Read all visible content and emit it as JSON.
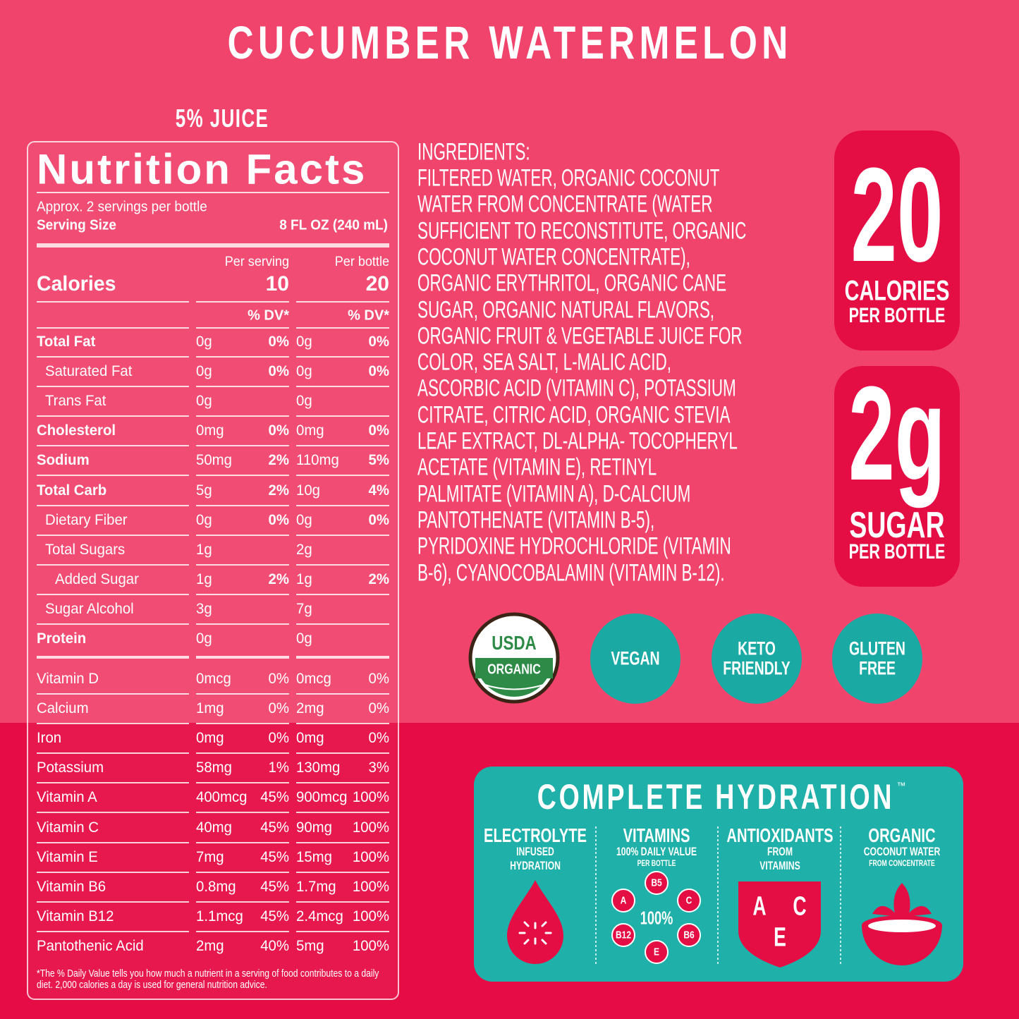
{
  "title": "CUCUMBER WATERMELON",
  "juice": "5% JUICE",
  "nutrition": {
    "heading": "Nutrition Facts",
    "servings": "Approx. 2 servings per bottle",
    "serving_size_label": "Serving Size",
    "serving_size": "8 FL OZ (240 mL)",
    "per_serving": "Per serving",
    "per_bottle": "Per bottle",
    "calories_label": "Calories",
    "calories_serving": "10",
    "calories_bottle": "20",
    "dv_headers": [
      "% DV*",
      "% DV*"
    ],
    "rows": [
      {
        "name": "Total Fat",
        "serving": "0g",
        "serving_dv": "0%",
        "bottle": "0g",
        "bottle_dv": "0%"
      },
      {
        "name": "Saturated Fat",
        "serving": "0g",
        "serving_dv": "0%",
        "bottle": "0g",
        "bottle_dv": "0%"
      },
      {
        "name": "Trans Fat",
        "serving": "0g",
        "bottle": "0g"
      },
      {
        "name": "Cholesterol",
        "serving": "0mg",
        "serving_dv": "0%",
        "bottle": "0mg",
        "bottle_dv": "0%"
      },
      {
        "name": "Sodium",
        "serving": "50mg",
        "serving_dv": "2%",
        "bottle": "110mg",
        "bottle_dv": "5%"
      },
      {
        "name": "Total Carb",
        "serving": "5g",
        "serving_dv": "2%",
        "bottle": "10g",
        "bottle_dv": "4%"
      },
      {
        "name": "Dietary Fiber",
        "serving": "0g",
        "serving_dv": "0%",
        "bottle": "0g",
        "bottle_dv": "0%"
      },
      {
        "name": "Total Sugars",
        "serving": "1g",
        "bottle": "2g"
      },
      {
        "name": "Added Sugar",
        "serving": "1g",
        "serving_dv": "2%",
        "bottle": "1g",
        "bottle_dv": "2%"
      },
      {
        "name": "Sugar Alcohol",
        "serving": "3g",
        "bottle": "7g"
      },
      {
        "name": "Protein",
        "serving": "0g",
        "bottle": "0g"
      }
    ],
    "vitamins": [
      {
        "name": "Vitamin D",
        "serving": "0mcg",
        "serving_dv": "0%",
        "bottle": "0mcg",
        "bottle_dv": "0%"
      },
      {
        "name": "Calcium",
        "serving": "1mg",
        "serving_dv": "0%",
        "bottle": "2mg",
        "bottle_dv": "0%"
      },
      {
        "name": "Iron",
        "serving": "0mg",
        "serving_dv": "0%",
        "bottle": "0mg",
        "bottle_dv": "0%"
      },
      {
        "name": "Potassium",
        "serving": "58mg",
        "serving_dv": "1%",
        "bottle": "130mg",
        "bottle_dv": "3%"
      },
      {
        "name": "Vitamin A",
        "serving": "400mcg",
        "serving_dv": "45%",
        "bottle": "900mcg",
        "bottle_dv": "100%"
      },
      {
        "name": "Vitamin C",
        "serving": "40mg",
        "serving_dv": "45%",
        "bottle": "90mg",
        "bottle_dv": "100%"
      },
      {
        "name": "Vitamin E",
        "serving": "7mg",
        "serving_dv": "45%",
        "bottle": "15mg",
        "bottle_dv": "100%"
      },
      {
        "name": "Vitamin B6",
        "serving": "0.8mg",
        "serving_dv": "45%",
        "bottle": "1.7mg",
        "bottle_dv": "100%"
      },
      {
        "name": "Vitamin B12",
        "serving": "1.1mcg",
        "serving_dv": "45%",
        "bottle": "2.4mcg",
        "bottle_dv": "100%"
      },
      {
        "name": "Pantothenic Acid",
        "serving": "2mg",
        "serving_dv": "40%",
        "bottle": "5mg",
        "bottle_dv": "100%"
      }
    ],
    "footnote": "*The % Daily Value tells you how much a nutrient in a serving of food contributes to a daily diet. 2,000 calories a day is used for general nutrition advice."
  },
  "ingredients": {
    "heading": "INGREDIENTS:",
    "lines": [
      "FILTERED WATER, ORGANIC COCONUT",
      "WATER FROM CONCENTRATE (WATER",
      "SUFFICIENT TO RECONSTITUTE, ORGANIC",
      "COCONUT WATER CONCENTRATE),",
      "ORGANIC ERYTHRITOL, ORGANIC CANE",
      "SUGAR, ORGANIC NATURAL FLAVORS,",
      "ORGANIC FRUIT & VEGETABLE JUICE FOR",
      "COLOR, SEA SALT, L-MALIC ACID,",
      "ASCORBIC ACID (VITAMIN C), POTASSIUM",
      "CITRATE, CITRIC ACID, ORGANIC STEVIA",
      "LEAF EXTRACT, DL-ALPHA- TOCOPHERYL",
      "ACETATE (VITAMIN E), RETINYL",
      "PALMITATE (VITAMIN A), D-CALCIUM",
      "PANTOTHENATE (VITAMIN B-5),",
      "PYRIDOXINE HYDROCHLORIDE (VITAMIN",
      "B-6), CYANOCOBALAMIN (VITAMIN B-12)."
    ]
  },
  "badges": [
    {
      "number": "20",
      "line1": "CALORIES",
      "line2": "PER BOTTLE"
    },
    {
      "number": "2g",
      "line1": "SUGAR",
      "line2": "PER BOTTLE"
    }
  ],
  "certifications": [
    {
      "lines": [
        "USDA",
        "ORGANIC"
      ]
    },
    {
      "lines": [
        "VEGAN"
      ]
    },
    {
      "lines": [
        "KETO",
        "FRIENDLY"
      ]
    },
    {
      "lines": [
        "GLUTEN",
        "FREE"
      ]
    }
  ],
  "hydration": {
    "title": "COMPLETE HYDRATION",
    "trademark": "™",
    "columns": [
      {
        "heading": "ELECTROLYTE",
        "lines": [
          "INFUSED",
          "HYDRATION"
        ]
      },
      {
        "heading": "VITAMINS",
        "lines": [
          "100% DAILY VALUE",
          "PER BOTTLE"
        ],
        "icon_center": "100%",
        "icon_labels": [
          "B5",
          "C",
          "B6",
          "E",
          "B12",
          "A"
        ]
      },
      {
        "heading": "ANTIOXIDANTS",
        "lines": [
          "FROM",
          "VITAMINS"
        ],
        "icon_labels": [
          "A",
          "C",
          "E"
        ]
      },
      {
        "heading": "ORGANIC",
        "lines": [
          "COCONUT WATER",
          "FROM CONCENTRATE"
        ]
      }
    ]
  }
}
